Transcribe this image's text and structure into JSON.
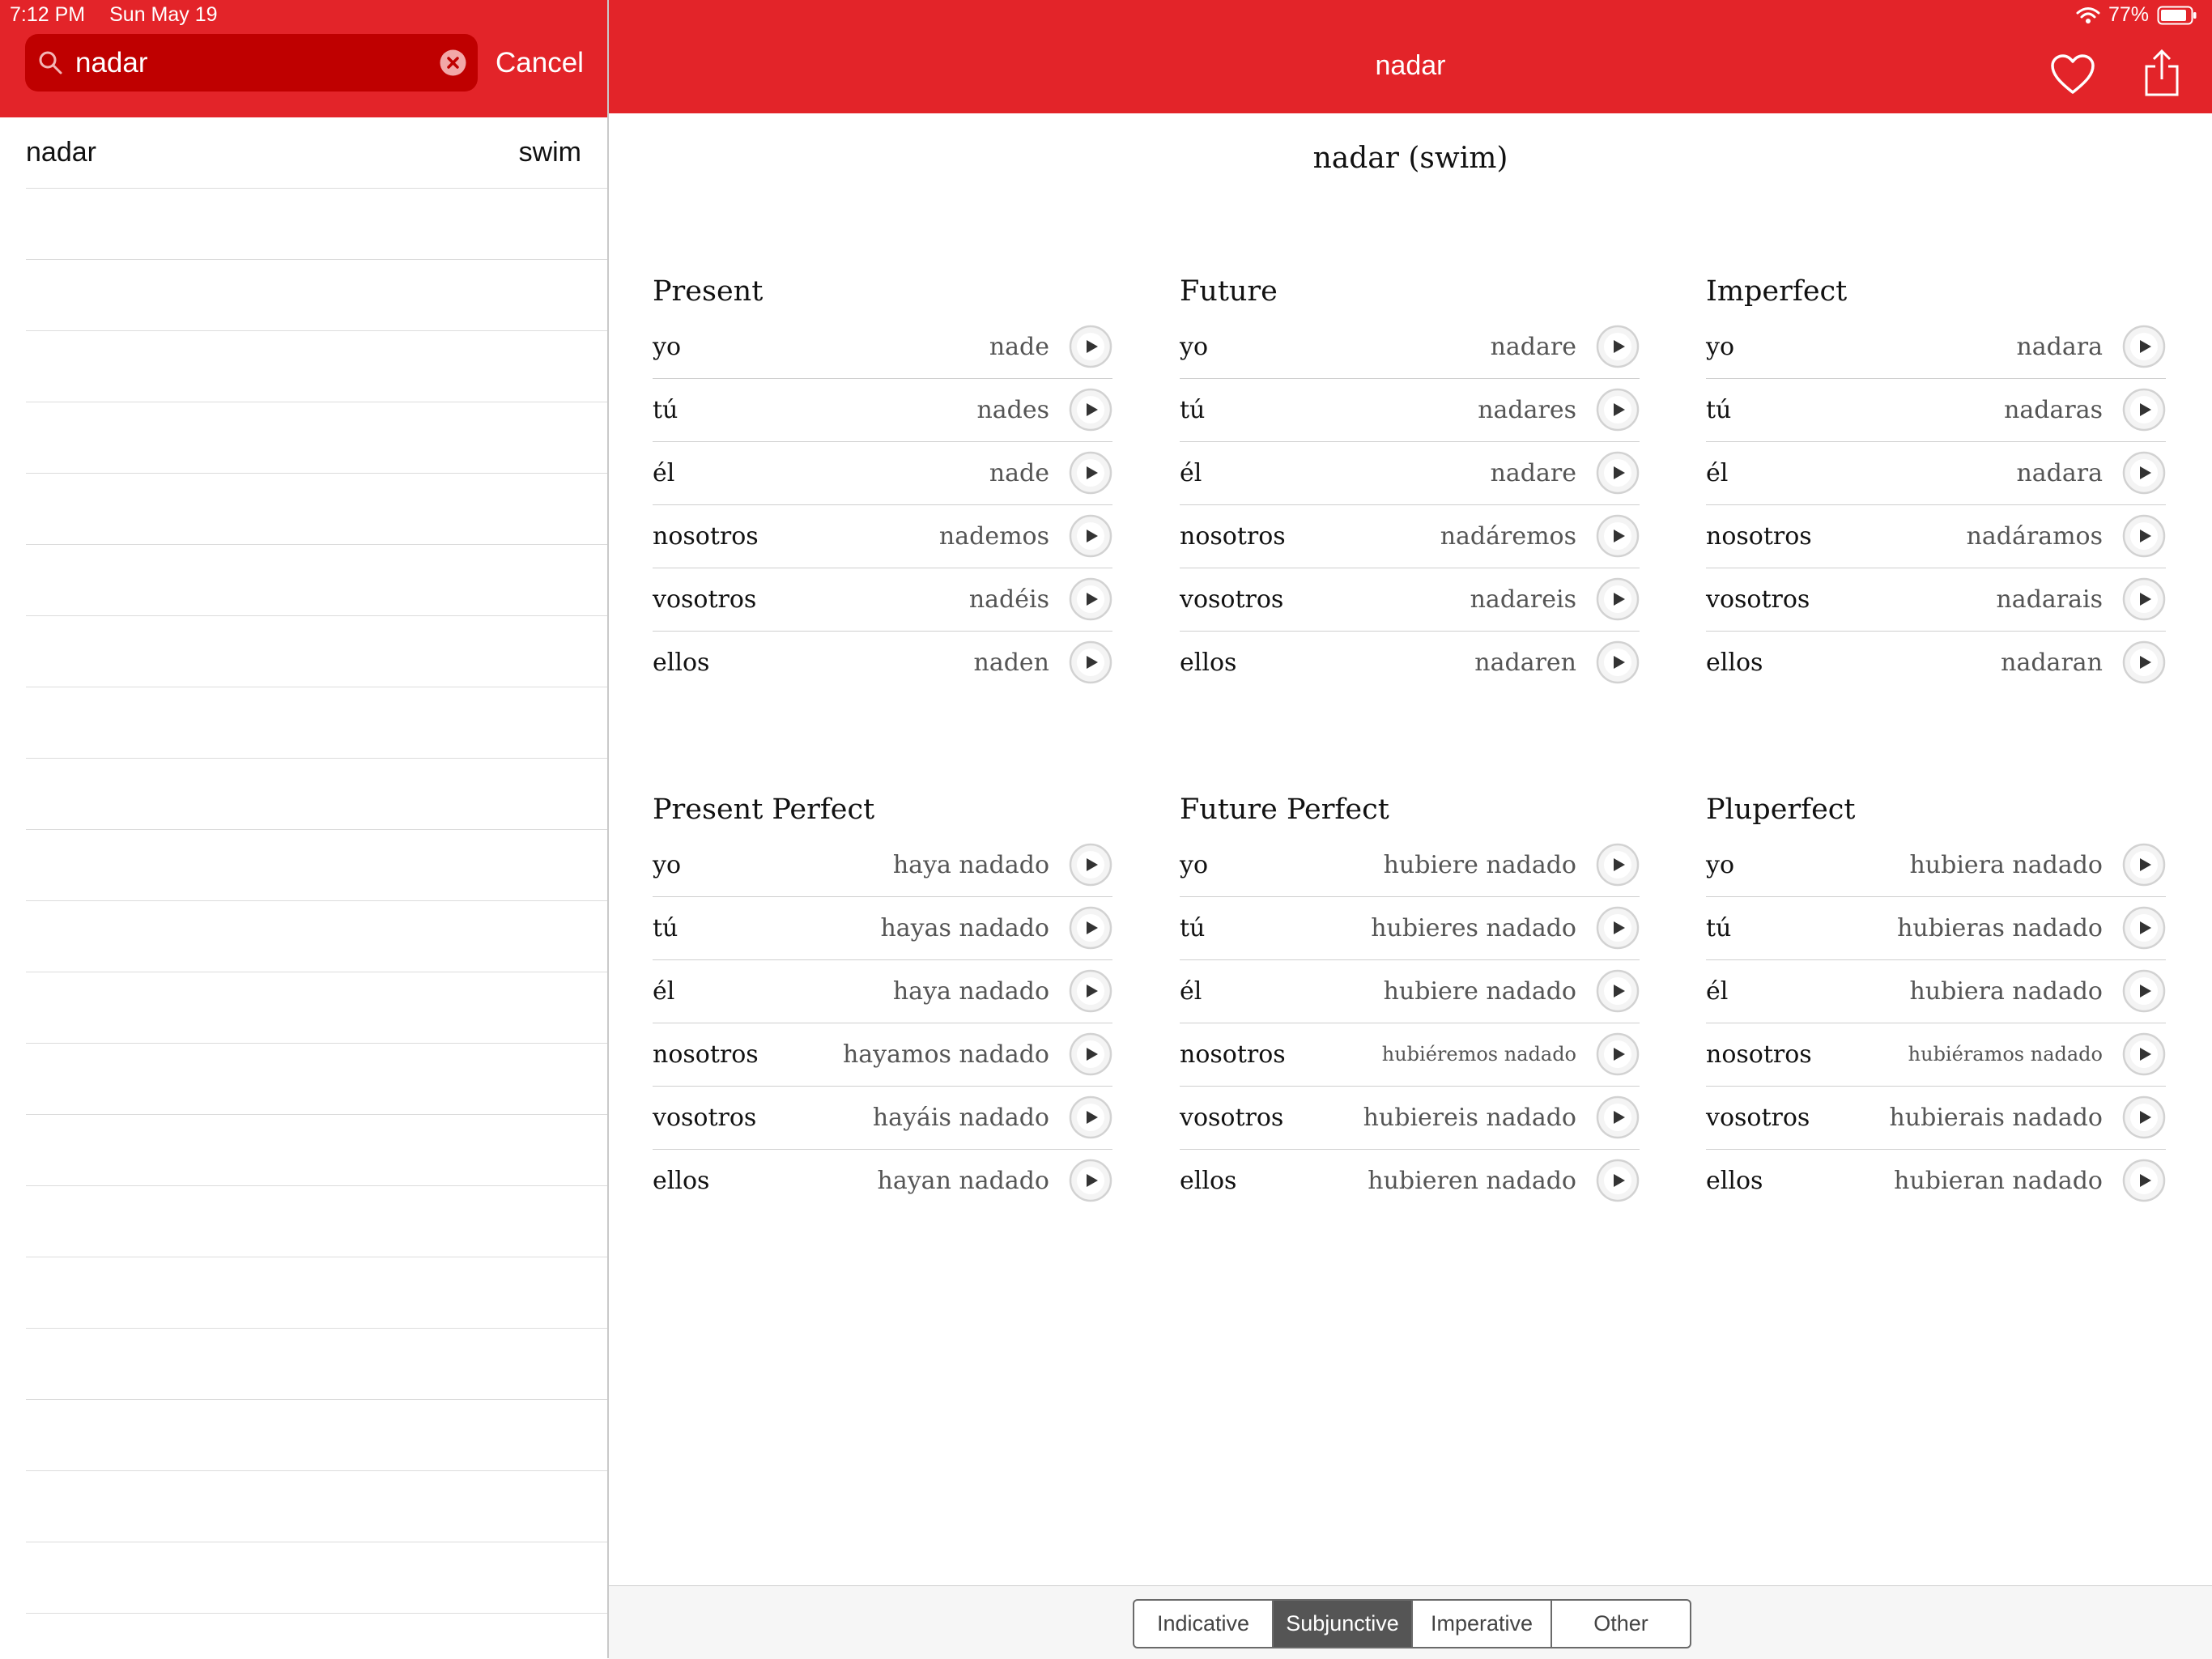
{
  "status_bar": {
    "time": "7:12 PM",
    "date": "Sun May 19",
    "battery": "77%"
  },
  "search": {
    "query": "nadar",
    "cancel_label": "Cancel"
  },
  "results": [
    {
      "verb": "nadar",
      "translation": "swim"
    }
  ],
  "colors": {
    "brand_red": "#e32429",
    "search_field": "#bf0000",
    "segment_active": "#555555"
  },
  "detail": {
    "nav_title": "nadar",
    "verb_heading": "nadar (swim)",
    "tenses": [
      {
        "name": "Present",
        "rows": [
          {
            "pronoun": "yo",
            "form": "nade"
          },
          {
            "pronoun": "tú",
            "form": "nades"
          },
          {
            "pronoun": "él",
            "form": "nade"
          },
          {
            "pronoun": "nosotros",
            "form": "nademos"
          },
          {
            "pronoun": "vosotros",
            "form": "nadéis"
          },
          {
            "pronoun": "ellos",
            "form": "naden"
          }
        ]
      },
      {
        "name": "Future",
        "rows": [
          {
            "pronoun": "yo",
            "form": "nadare"
          },
          {
            "pronoun": "tú",
            "form": "nadares"
          },
          {
            "pronoun": "él",
            "form": "nadare"
          },
          {
            "pronoun": "nosotros",
            "form": "nadáremos"
          },
          {
            "pronoun": "vosotros",
            "form": "nadareis"
          },
          {
            "pronoun": "ellos",
            "form": "nadaren"
          }
        ]
      },
      {
        "name": "Imperfect",
        "rows": [
          {
            "pronoun": "yo",
            "form": "nadara"
          },
          {
            "pronoun": "tú",
            "form": "nadaras"
          },
          {
            "pronoun": "él",
            "form": "nadara"
          },
          {
            "pronoun": "nosotros",
            "form": "nadáramos"
          },
          {
            "pronoun": "vosotros",
            "form": "nadarais"
          },
          {
            "pronoun": "ellos",
            "form": "nadaran"
          }
        ]
      },
      {
        "name": "Present Perfect",
        "rows": [
          {
            "pronoun": "yo",
            "form": "haya nadado"
          },
          {
            "pronoun": "tú",
            "form": "hayas nadado"
          },
          {
            "pronoun": "él",
            "form": "haya nadado"
          },
          {
            "pronoun": "nosotros",
            "form": "hayamos nadado"
          },
          {
            "pronoun": "vosotros",
            "form": "hayáis nadado"
          },
          {
            "pronoun": "ellos",
            "form": "hayan nadado"
          }
        ]
      },
      {
        "name": "Future Perfect",
        "rows": [
          {
            "pronoun": "yo",
            "form": "hubiere nadado"
          },
          {
            "pronoun": "tú",
            "form": "hubieres nadado"
          },
          {
            "pronoun": "él",
            "form": "hubiere nadado"
          },
          {
            "pronoun": "nosotros",
            "form": "hubiéremos nadado"
          },
          {
            "pronoun": "vosotros",
            "form": "hubiereis nadado"
          },
          {
            "pronoun": "ellos",
            "form": "hubieren nadado"
          }
        ]
      },
      {
        "name": "Pluperfect",
        "rows": [
          {
            "pronoun": "yo",
            "form": "hubiera nadado"
          },
          {
            "pronoun": "tú",
            "form": "hubieras nadado"
          },
          {
            "pronoun": "él",
            "form": "hubiera nadado"
          },
          {
            "pronoun": "nosotros",
            "form": "hubiéramos nadado"
          },
          {
            "pronoun": "vosotros",
            "form": "hubierais nadado"
          },
          {
            "pronoun": "ellos",
            "form": "hubieran nadado"
          }
        ]
      }
    ]
  },
  "mood_tabs": {
    "items": [
      "Indicative",
      "Subjunctive",
      "Imperative",
      "Other"
    ],
    "selected": "Subjunctive"
  }
}
